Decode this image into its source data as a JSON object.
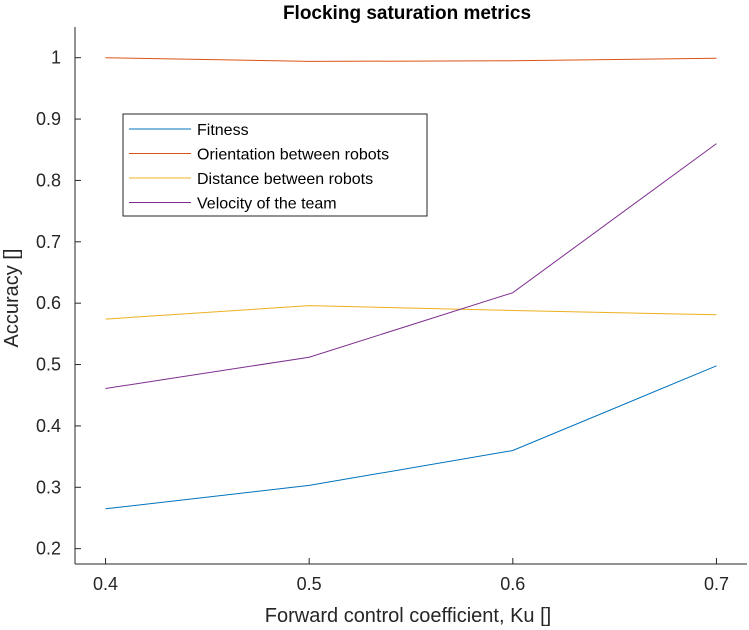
{
  "chart_data": {
    "type": "line",
    "title": "Flocking saturation metrics",
    "xlabel": "Forward control coefficient, Ku []",
    "ylabel": "Accuracy []",
    "x": [
      0.4,
      0.5,
      0.6,
      0.7
    ],
    "xticks": [
      "0.4",
      "0.5",
      "0.6",
      "0.7"
    ],
    "xlim": [
      0.385,
      0.715
    ],
    "ylim": [
      0.175,
      1.05
    ],
    "yticks": [
      "0.2",
      "0.3",
      "0.4",
      "0.5",
      "0.6",
      "0.7",
      "0.8",
      "0.9",
      "1"
    ],
    "grid": false,
    "legend_position": "top-left",
    "series": [
      {
        "name": "Fitness",
        "color": "#0072BD",
        "values": [
          0.265,
          0.303,
          0.36,
          0.498
        ]
      },
      {
        "name": "Orientation between robots",
        "color": "#D95319",
        "values": [
          1.0,
          0.994,
          0.995,
          0.999
        ]
      },
      {
        "name": "Distance between robots",
        "color": "#EDB120",
        "values": [
          0.574,
          0.596,
          0.588,
          0.581
        ]
      },
      {
        "name": "Velocity of the team",
        "color": "#7E2F8E",
        "values": [
          0.461,
          0.512,
          0.617,
          0.86
        ]
      }
    ]
  }
}
